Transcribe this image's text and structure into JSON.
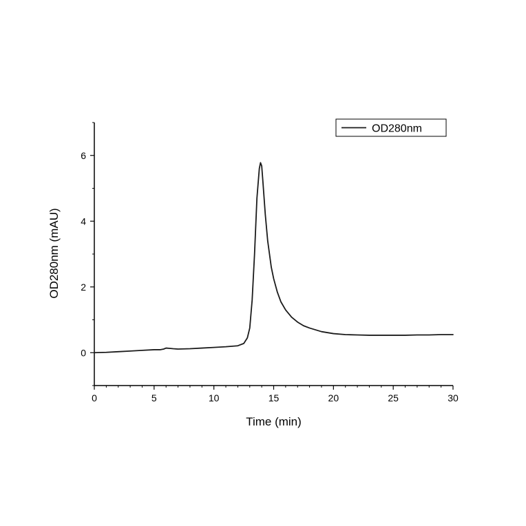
{
  "chart_data": {
    "type": "line",
    "title": "",
    "xlabel": "Time (min)",
    "ylabel": "OD280nm (mAU)",
    "xlim": [
      0,
      30
    ],
    "ylim": [
      -1,
      7
    ],
    "x_ticks": [
      0,
      5,
      10,
      15,
      20,
      25,
      30
    ],
    "y_ticks": [
      0,
      2,
      4,
      6
    ],
    "x_minor_step": 1,
    "y_minor_step": 1,
    "grid": false,
    "legend_position": "top-right",
    "line_color": "#1a1a1a",
    "series": [
      {
        "name": "OD280nm",
        "x": [
          0,
          1,
          2,
          3,
          4,
          5,
          5.5,
          5.8,
          6.0,
          6.3,
          6.6,
          7,
          8,
          9,
          10,
          11,
          12,
          12.5,
          12.8,
          13.0,
          13.2,
          13.4,
          13.6,
          13.8,
          13.9,
          14.0,
          14.1,
          14.3,
          14.5,
          14.8,
          15.0,
          15.3,
          15.6,
          16.0,
          16.5,
          17.0,
          17.5,
          18.0,
          19.0,
          20.0,
          21.0,
          22.0,
          23.0,
          24.0,
          25.0,
          26.0,
          27.0,
          28.0,
          29.0,
          30.0
        ],
        "y": [
          0.0,
          0.01,
          0.03,
          0.05,
          0.07,
          0.09,
          0.09,
          0.11,
          0.14,
          0.13,
          0.12,
          0.11,
          0.12,
          0.14,
          0.16,
          0.18,
          0.21,
          0.28,
          0.45,
          0.75,
          1.6,
          3.0,
          4.7,
          5.6,
          5.78,
          5.68,
          5.2,
          4.2,
          3.4,
          2.6,
          2.25,
          1.85,
          1.55,
          1.3,
          1.08,
          0.93,
          0.82,
          0.75,
          0.64,
          0.58,
          0.55,
          0.54,
          0.53,
          0.53,
          0.53,
          0.53,
          0.54,
          0.54,
          0.55,
          0.55
        ]
      }
    ]
  }
}
